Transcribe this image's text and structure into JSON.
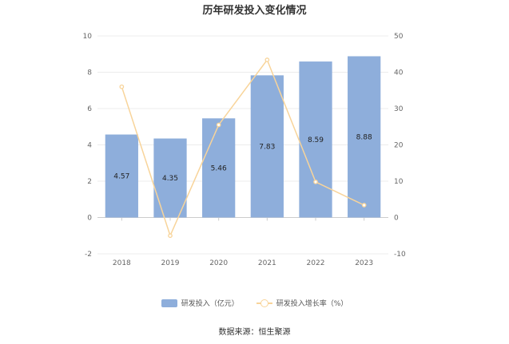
{
  "title": "历年研发投入变化情况",
  "source": "数据来源：恒生聚源",
  "chart_data": {
    "type": "bar",
    "categories": [
      "2018",
      "2019",
      "2020",
      "2021",
      "2022",
      "2023"
    ],
    "series": [
      {
        "name": "研发投入（亿元）",
        "type": "bar",
        "axis": "left",
        "color": "#8eaedb",
        "values": [
          4.57,
          4.35,
          5.46,
          7.83,
          8.59,
          8.88
        ],
        "labels": [
          "4.57",
          "4.35",
          "5.46",
          "7.83",
          "8.59",
          "8.88"
        ]
      },
      {
        "name": "研发投入增长率（%）",
        "type": "line",
        "axis": "right",
        "color": "#f8d49a",
        "values": [
          36.0,
          -5.0,
          25.5,
          43.4,
          9.8,
          3.4
        ]
      }
    ],
    "y_left": {
      "min": -2,
      "max": 10,
      "ticks": [
        "-2",
        "0",
        "2",
        "4",
        "6",
        "8",
        "10"
      ]
    },
    "y_right": {
      "min": -10,
      "max": 50,
      "ticks": [
        "-10",
        "0",
        "10",
        "20",
        "30",
        "40",
        "50"
      ]
    },
    "grid": true,
    "legend_position": "bottom"
  }
}
